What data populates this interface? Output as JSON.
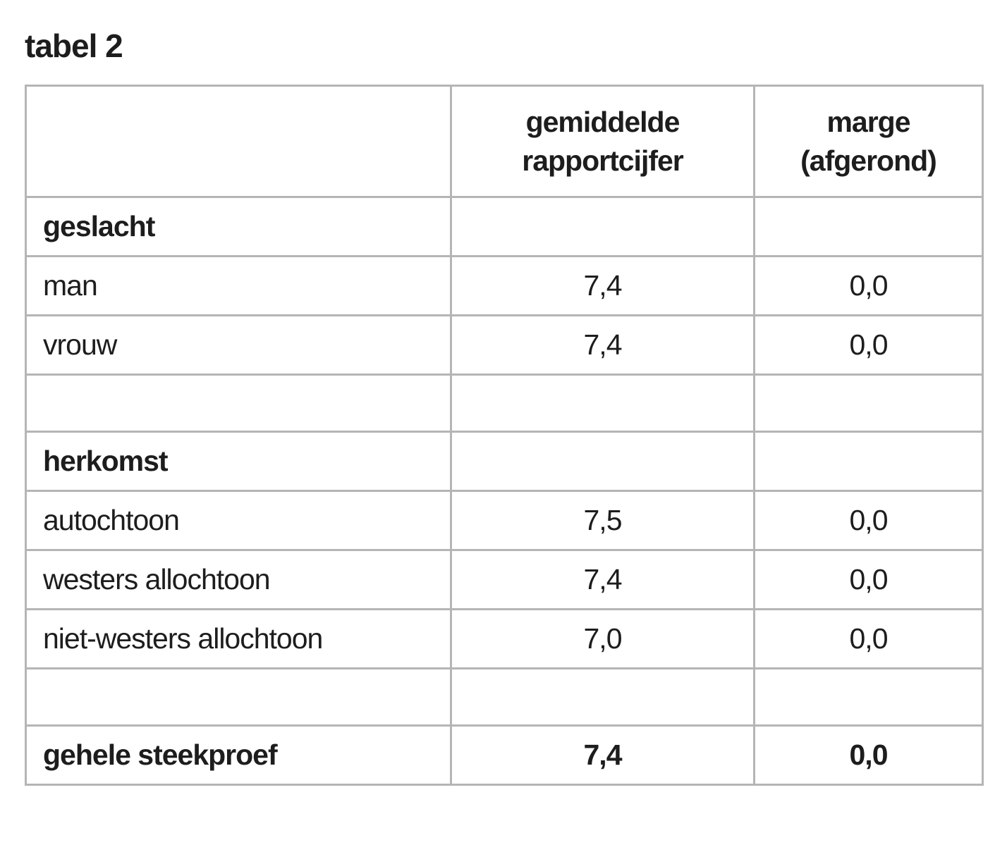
{
  "title": "tabel 2",
  "table": {
    "header": {
      "col1": "",
      "col2": "gemiddelde\nrapportcijfer",
      "col3": "marge\n(afgerond)"
    },
    "rows": [
      {
        "label": "geslacht",
        "gemiddelde": "",
        "marge": ""
      },
      {
        "label": "man",
        "gemiddelde": "7,4",
        "marge": "0,0"
      },
      {
        "label": "vrouw",
        "gemiddelde": "7,4",
        "marge": "0,0"
      },
      {
        "label": "",
        "gemiddelde": "",
        "marge": ""
      },
      {
        "label": "herkomst",
        "gemiddelde": "",
        "marge": ""
      },
      {
        "label": "autochtoon",
        "gemiddelde": "7,5",
        "marge": "0,0"
      },
      {
        "label": "westers allochtoon",
        "gemiddelde": "7,4",
        "marge": "0,0"
      },
      {
        "label": "niet-westers allochtoon",
        "gemiddelde": "7,0",
        "marge": "0,0"
      },
      {
        "label": "",
        "gemiddelde": "",
        "marge": ""
      },
      {
        "label": "gehele steekproef",
        "gemiddelde": "7,4",
        "marge": "0,0"
      }
    ],
    "colors": {
      "border": "#b5b5b5",
      "text": "#1d1d1d",
      "background": "#ffffff"
    }
  }
}
